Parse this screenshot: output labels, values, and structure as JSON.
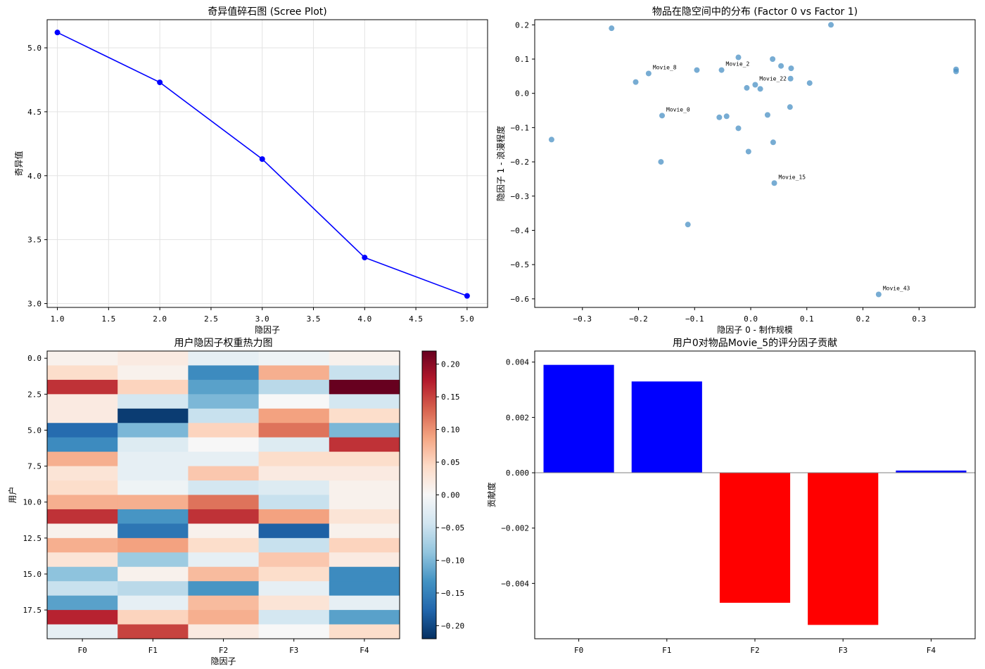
{
  "chart_data": [
    {
      "type": "line",
      "title": "奇异值碎石图 (Scree Plot)",
      "xlabel": "隐因子",
      "ylabel": "奇异值",
      "x": [
        1,
        2,
        3,
        4,
        5
      ],
      "values": [
        5.12,
        4.73,
        4.13,
        3.36,
        3.06
      ],
      "xlim": [
        0.9,
        5.2
      ],
      "ylim": [
        2.97,
        5.22
      ],
      "xticks": [
        "1.0",
        "1.5",
        "2.0",
        "2.5",
        "3.0",
        "3.5",
        "4.0",
        "4.5",
        "5.0"
      ],
      "yticks": [
        "3.0",
        "3.5",
        "4.0",
        "4.5",
        "5.0"
      ],
      "color": "#0000ff",
      "grid": true
    },
    {
      "type": "scatter",
      "title": "物品在隐空间中的分布 (Factor 0 vs Factor 1)",
      "xlabel": "隐因子 0 - 制作规模",
      "ylabel": "隐因子 1 - 浪漫程度",
      "xlim": [
        -0.385,
        0.4
      ],
      "ylim": [
        -0.625,
        0.215
      ],
      "xticks": [
        "−0.3",
        "−0.2",
        "−0.1",
        "0.0",
        "0.1",
        "0.2",
        "0.3"
      ],
      "yticks": [
        "0.2",
        "0.1",
        "0.0",
        "−0.1",
        "−0.2",
        "−0.3",
        "−0.4",
        "−0.5",
        "−0.6"
      ],
      "color": "#4a90c4",
      "grid": false,
      "points": [
        {
          "x": -0.248,
          "y": 0.19
        },
        {
          "x": -0.355,
          "y": -0.135
        },
        {
          "x": -0.205,
          "y": 0.033
        },
        {
          "x": -0.182,
          "y": 0.058,
          "label": "Movie_8"
        },
        {
          "x": -0.158,
          "y": -0.065,
          "label": "Movie_0"
        },
        {
          "x": -0.16,
          "y": -0.2
        },
        {
          "x": -0.112,
          "y": -0.383
        },
        {
          "x": -0.096,
          "y": 0.068
        },
        {
          "x": -0.052,
          "y": 0.068,
          "label": "Movie_2"
        },
        {
          "x": -0.022,
          "y": 0.105
        },
        {
          "x": -0.056,
          "y": -0.07
        },
        {
          "x": -0.043,
          "y": -0.067
        },
        {
          "x": -0.022,
          "y": -0.102
        },
        {
          "x": -0.007,
          "y": 0.016
        },
        {
          "x": 0.008,
          "y": 0.025,
          "label": "Movie_22"
        },
        {
          "x": 0.017,
          "y": 0.013
        },
        {
          "x": 0.03,
          "y": -0.063
        },
        {
          "x": 0.039,
          "y": 0.1
        },
        {
          "x": 0.054,
          "y": 0.08
        },
        {
          "x": -0.004,
          "y": -0.17
        },
        {
          "x": 0.04,
          "y": -0.143
        },
        {
          "x": 0.042,
          "y": -0.262,
          "label": "Movie_15"
        },
        {
          "x": 0.071,
          "y": 0.043
        },
        {
          "x": 0.072,
          "y": 0.073
        },
        {
          "x": 0.07,
          "y": -0.04
        },
        {
          "x": 0.105,
          "y": 0.03
        },
        {
          "x": 0.143,
          "y": 0.2
        },
        {
          "x": 0.228,
          "y": -0.587,
          "label": "Movie_43"
        },
        {
          "x": 0.366,
          "y": 0.07
        },
        {
          "x": 0.366,
          "y": 0.064
        }
      ]
    },
    {
      "type": "heatmap",
      "title": "用户隐因子权重热力图",
      "xlabel": "隐因子",
      "ylabel": "用户",
      "columns": [
        "F0",
        "F1",
        "F2",
        "F3",
        "F4"
      ],
      "yticks": [
        "0.0",
        "2.5",
        "5.0",
        "7.5",
        "10.0",
        "12.5",
        "15.0",
        "17.5"
      ],
      "colorbar_ticks": [
        "0.20",
        "0.15",
        "0.10",
        "0.05",
        "0.00",
        "−0.05",
        "−0.10",
        "−0.15",
        "−0.20"
      ],
      "vmin": -0.22,
      "vmax": 0.22,
      "colormap": "RdBu_r",
      "values": [
        [
          0.01,
          0.02,
          -0.02,
          -0.01,
          0.01
        ],
        [
          0.04,
          0.01,
          -0.14,
          0.08,
          -0.05
        ],
        [
          0.16,
          0.05,
          -0.12,
          -0.06,
          0.22
        ],
        [
          0.02,
          -0.04,
          -0.1,
          0.0,
          -0.04
        ],
        [
          0.02,
          -0.21,
          -0.05,
          0.09,
          0.04
        ],
        [
          -0.17,
          -0.1,
          0.05,
          0.12,
          -0.1
        ],
        [
          -0.14,
          -0.03,
          0.0,
          -0.03,
          0.16
        ],
        [
          0.08,
          -0.02,
          -0.02,
          0.04,
          0.04
        ],
        [
          0.03,
          -0.02,
          0.06,
          0.02,
          0.02
        ],
        [
          0.04,
          -0.01,
          -0.04,
          -0.03,
          0.01
        ],
        [
          0.08,
          0.08,
          0.12,
          -0.05,
          0.01
        ],
        [
          0.16,
          -0.13,
          0.16,
          0.09,
          0.03
        ],
        [
          0.01,
          -0.16,
          0.01,
          -0.18,
          0.01
        ],
        [
          0.08,
          0.09,
          0.04,
          -0.05,
          0.05
        ],
        [
          0.03,
          -0.08,
          -0.02,
          0.06,
          0.02
        ],
        [
          -0.09,
          0.01,
          0.07,
          0.04,
          -0.14
        ],
        [
          -0.05,
          -0.06,
          -0.13,
          -0.02,
          -0.14
        ],
        [
          -0.12,
          -0.02,
          0.07,
          0.03,
          -0.02
        ],
        [
          0.17,
          0.05,
          0.08,
          -0.04,
          -0.12
        ],
        [
          -0.02,
          0.15,
          0.02,
          0.0,
          0.04
        ]
      ]
    },
    {
      "type": "bar",
      "title": "用户0对物品Movie_5的评分因子贡献",
      "xlabel": "",
      "ylabel": "贡献度",
      "categories": [
        "F0",
        "F1",
        "F2",
        "F3",
        "F4"
      ],
      "values": [
        0.0039,
        0.0033,
        -0.0047,
        -0.0055,
        8e-05
      ],
      "ylim": [
        -0.006,
        0.0044
      ],
      "yticks": [
        "0.004",
        "0.002",
        "0.000",
        "−0.002",
        "−0.004"
      ],
      "positive_color": "#0000ff",
      "negative_color": "#ff0000"
    }
  ]
}
